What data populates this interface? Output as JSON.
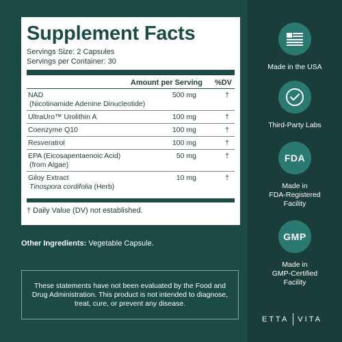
{
  "facts": {
    "title": "Supplement Facts",
    "servings_size": "Servings Size: 2 Capsules",
    "servings_per_container": "Servings per Container: 30",
    "col_amount": "Amount per Serving",
    "col_dv": "%DV",
    "rows": [
      {
        "name": "NAD",
        "sub": "(Nicotinamide Adenine Dinucleotide)",
        "amount": "500 mg",
        "dv": "†"
      },
      {
        "name": "UltraUro™ Urolithin A",
        "amount": "100 mg",
        "dv": "†"
      },
      {
        "name": "Coenzyme Q10",
        "amount": "100 mg",
        "dv": "†"
      },
      {
        "name": "Resveratrol",
        "amount": "100 mg",
        "dv": "†"
      },
      {
        "name": "EPA (Eicosapentaenoic Acid)",
        "sub": "(from Algae)",
        "amount": "50 mg",
        "dv": "†"
      },
      {
        "name": "Giloy Extract",
        "sub_italic": "Tinospora cordifolia",
        "sub_rest": " (Herb)",
        "amount": "10 mg",
        "dv": "†"
      }
    ],
    "footnote": "† Daily Value (DV) not established."
  },
  "other_ingredients": {
    "label": "Other Ingredients:",
    "value": " Vegetable Capsule."
  },
  "disclaimer": "These statements have not been evaluated by the Food and Drug Administration. This product is not intended to diagnose, treat, cure, or prevent any disease.",
  "badges": [
    {
      "icon": "us-flag-icon",
      "label": "Made in the USA"
    },
    {
      "icon": "checkmark-icon",
      "label": "Third-Party Labs"
    },
    {
      "icon": "fda-icon",
      "icon_text": "FDA",
      "label_lines": [
        "Made in",
        "FDA-Registered",
        "Facility"
      ]
    },
    {
      "icon": "gmp-icon",
      "icon_text": "GMP",
      "label_lines": [
        "Made in",
        "GMP-Certified",
        "Facility"
      ]
    }
  ],
  "brand": {
    "left": "ETTA",
    "right": "VITA"
  },
  "colors": {
    "background": "#1c4a45",
    "sidebar": "#1b3d3a",
    "badge": "#2a7a72",
    "panel": "#ffffff"
  }
}
